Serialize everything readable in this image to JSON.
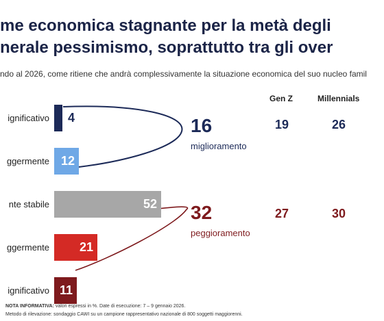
{
  "header": {
    "title_line1": "me economica stagnante per la metà degli",
    "title_line2": "nerale pessimismo, soprattutto tra gli over",
    "subtitle": "ndo al 2026, come ritiene che andrà complessivamente la situazione economica del suo nucleo famil"
  },
  "columns": {
    "genz": "Gen Z",
    "millennials": "Millennials"
  },
  "chart_data": {
    "type": "bar",
    "orientation": "horizontal",
    "unit": "%",
    "categories": [
      "ignificativo",
      "ggermente",
      "nte stabile",
      "ggermente",
      "ignificativo"
    ],
    "values": [
      4,
      12,
      52,
      21,
      11
    ],
    "colors": [
      "#1c2a58",
      "#6fa8e6",
      "#a7a7a7",
      "#d42a25",
      "#7e1a1d"
    ],
    "value_label_colors": [
      "#1c2a58",
      "#ffffff",
      "#ffffff",
      "#ffffff",
      "#ffffff"
    ],
    "xlim": [
      0,
      52
    ]
  },
  "summary": {
    "improve": {
      "value": "16",
      "label": "miglioramento",
      "genz": "19",
      "millennials": "26",
      "color": "#1c2a58"
    },
    "worsen": {
      "value": "32",
      "label": "peggioramento",
      "genz": "27",
      "millennials": "30",
      "color": "#7e1a1d"
    }
  },
  "note": {
    "line1_bold": "NOTA INFORMATIVA:",
    "line1": " valori espressi in %. Date di esecuzione: 7 – 9 gennaio 2026.",
    "line2": "Metodo di rilevazione: sondaggio CAWI su un campione rappresentativo nazionale di 800 soggetti maggiorenni."
  }
}
